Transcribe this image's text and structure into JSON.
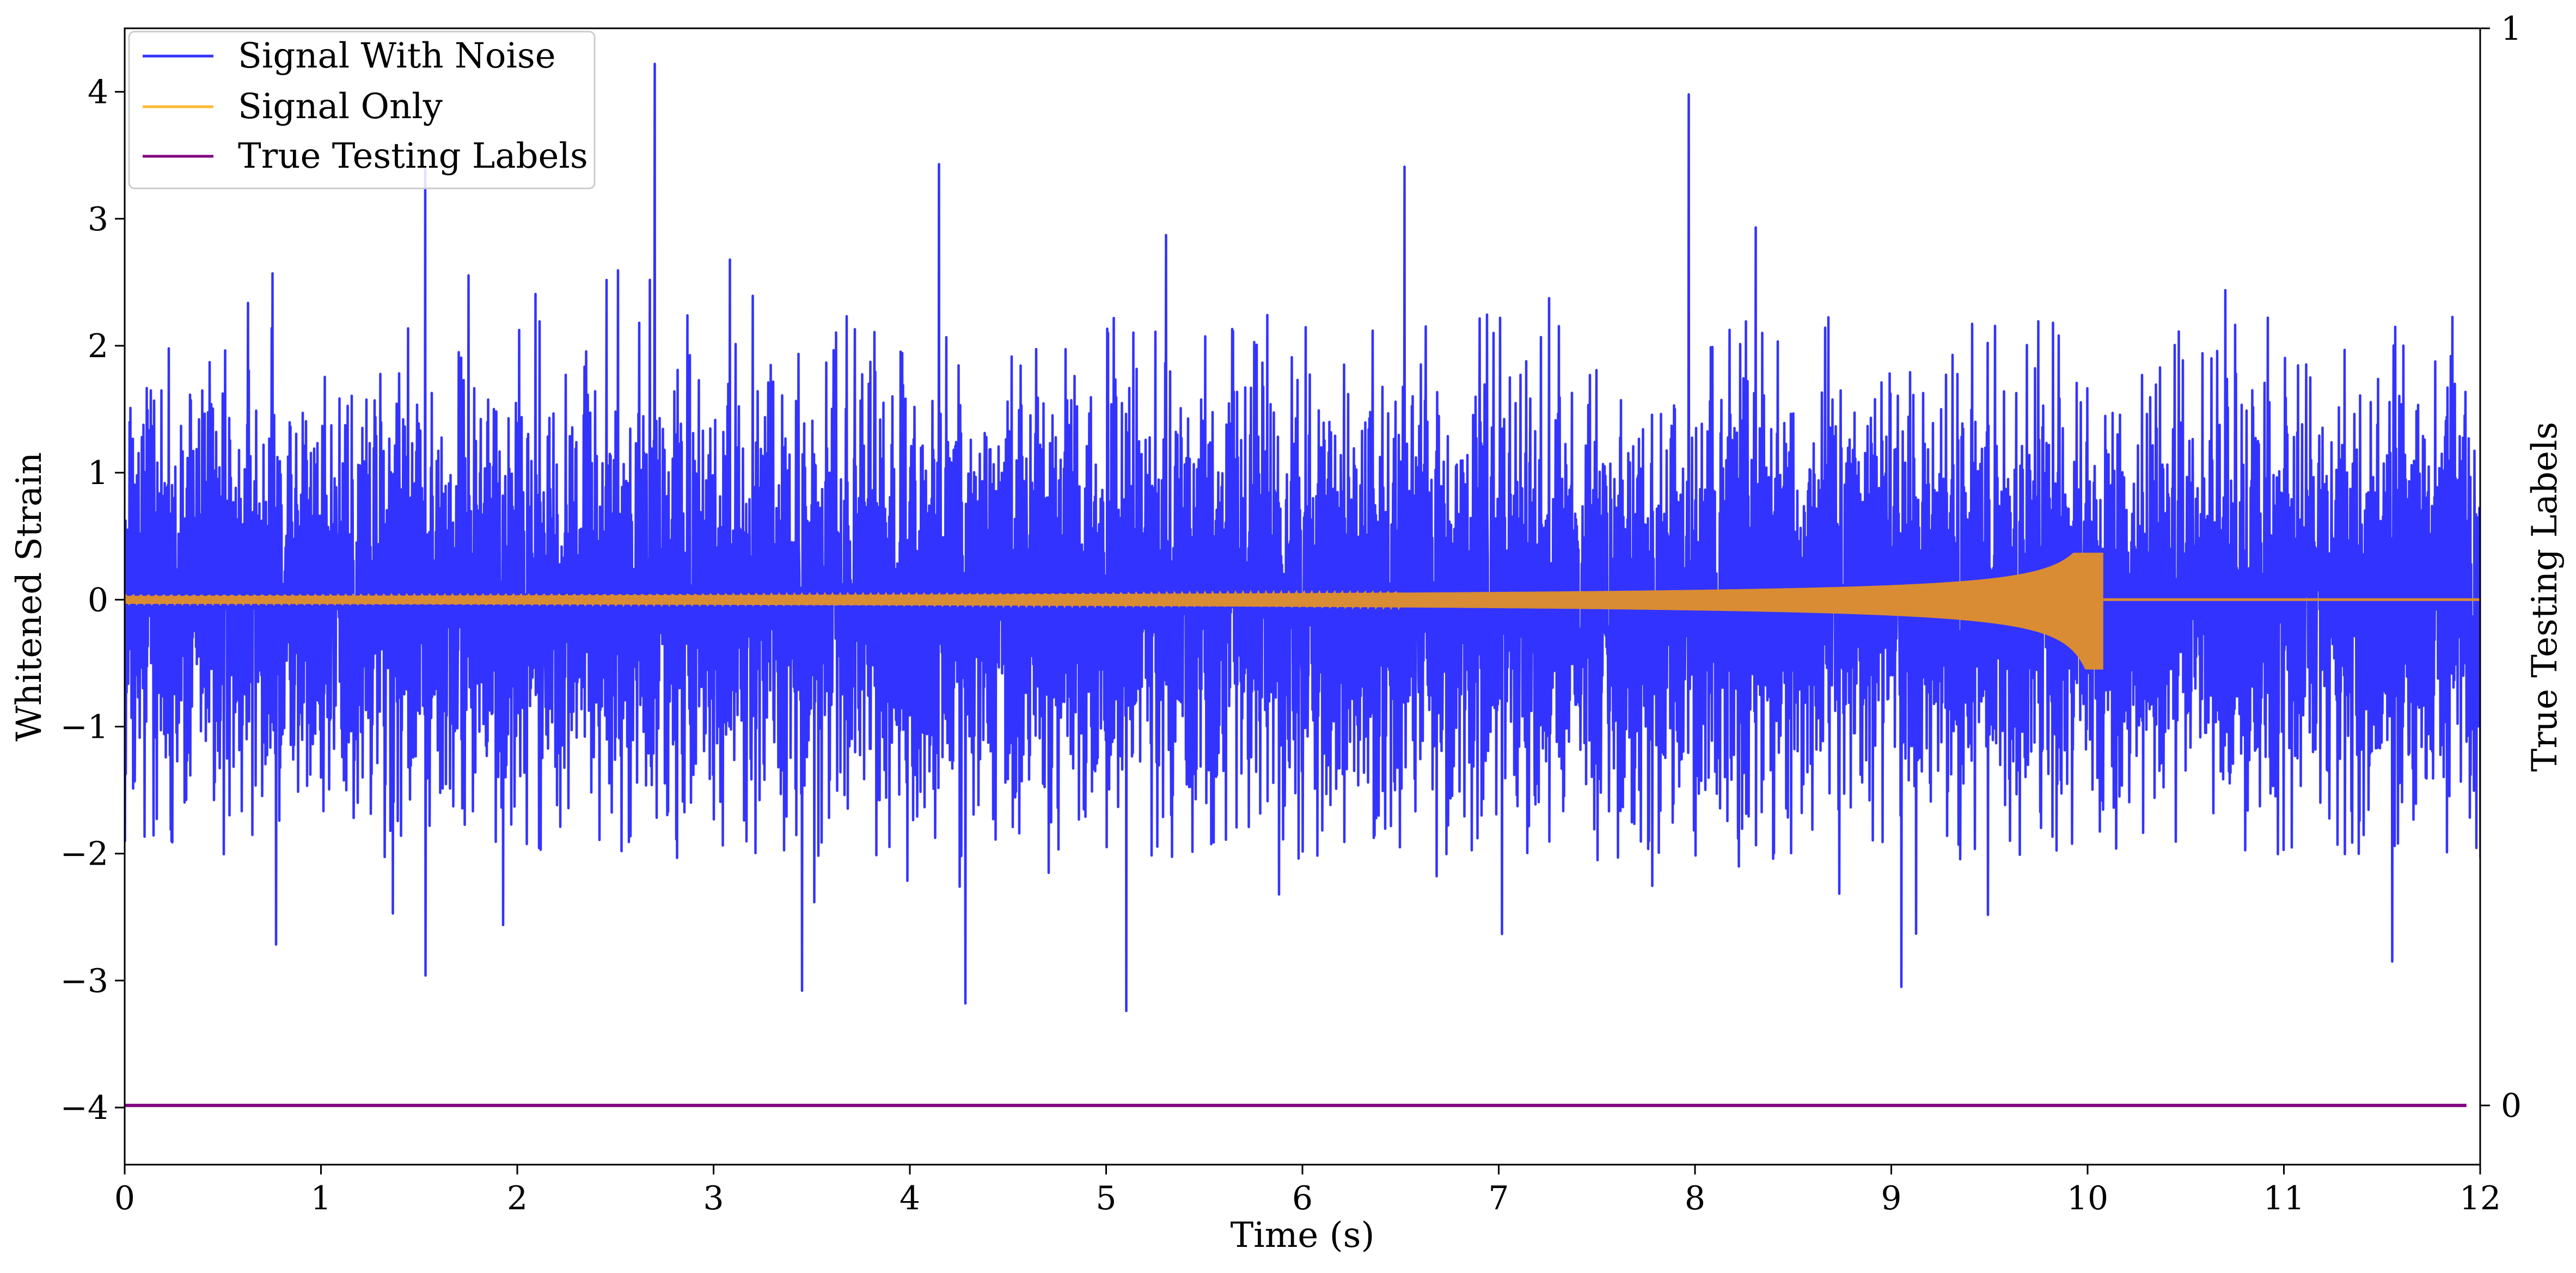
{
  "chart_data": {
    "type": "line",
    "xlabel": "Time (s)",
    "ylabel": "Whitened Strain",
    "ylabel_right": "True Testing Labels",
    "xlim": [
      0,
      12
    ],
    "ylim": [
      -4.45,
      4.5
    ],
    "ylim_right": [
      -0.055,
      1.0
    ],
    "x_ticks": [
      0,
      1,
      2,
      3,
      4,
      5,
      6,
      7,
      8,
      9,
      10,
      11,
      12
    ],
    "x_tick_labels": [
      "0",
      "1",
      "2",
      "3",
      "4",
      "5",
      "6",
      "7",
      "8",
      "9",
      "10",
      "11",
      "12"
    ],
    "y_ticks": [
      4,
      3,
      2,
      1,
      0,
      -1,
      -2,
      -3,
      -4
    ],
    "y_tick_labels": [
      "4",
      "3",
      "2",
      "1",
      "0",
      "−1",
      "−2",
      "−3",
      "−4"
    ],
    "y_right_ticks": [
      1,
      0
    ],
    "y_right_tick_labels": [
      "1",
      "0"
    ],
    "grid": false,
    "legend_position": "top-left",
    "series": [
      {
        "name": "Signal With Noise",
        "color": "#3333ff",
        "axis": "left",
        "description_values": {
          "x_range": [
            0,
            12
          ],
          "noise_std": 0.8,
          "typical_envelope": [
            -1.9,
            2.1
          ],
          "extremes": [
            {
              "x": 1.53,
              "y": 3.4
            },
            {
              "x": 2.7,
              "y": 4.22
            },
            {
              "x": 4.15,
              "y": 3.43
            },
            {
              "x": 7.97,
              "y": 3.98
            },
            {
              "x": 6.52,
              "y": 3.41
            },
            {
              "x": 3.45,
              "y": -3.08
            },
            {
              "x": 4.28,
              "y": -3.18
            },
            {
              "x": 5.1,
              "y": -3.24
            },
            {
              "x": 9.05,
              "y": -3.05
            },
            {
              "x": 1.53,
              "y": -2.96
            },
            {
              "x": 11.55,
              "y": -2.85
            }
          ]
        }
      },
      {
        "name": "Signal Only",
        "color": "#ffb833",
        "fill_color": "#d98c33",
        "axis": "left",
        "description_values": {
          "x_range": [
            0,
            12
          ],
          "merger_time": 10.08,
          "peak_positive": 0.37,
          "peak_negative": -0.55,
          "amplitude_at_start": 0.03
        }
      },
      {
        "name": "True Testing Labels",
        "color": "#800080",
        "axis": "right",
        "x": [
          0,
          11.93
        ],
        "y": [
          0,
          0
        ]
      }
    ]
  }
}
